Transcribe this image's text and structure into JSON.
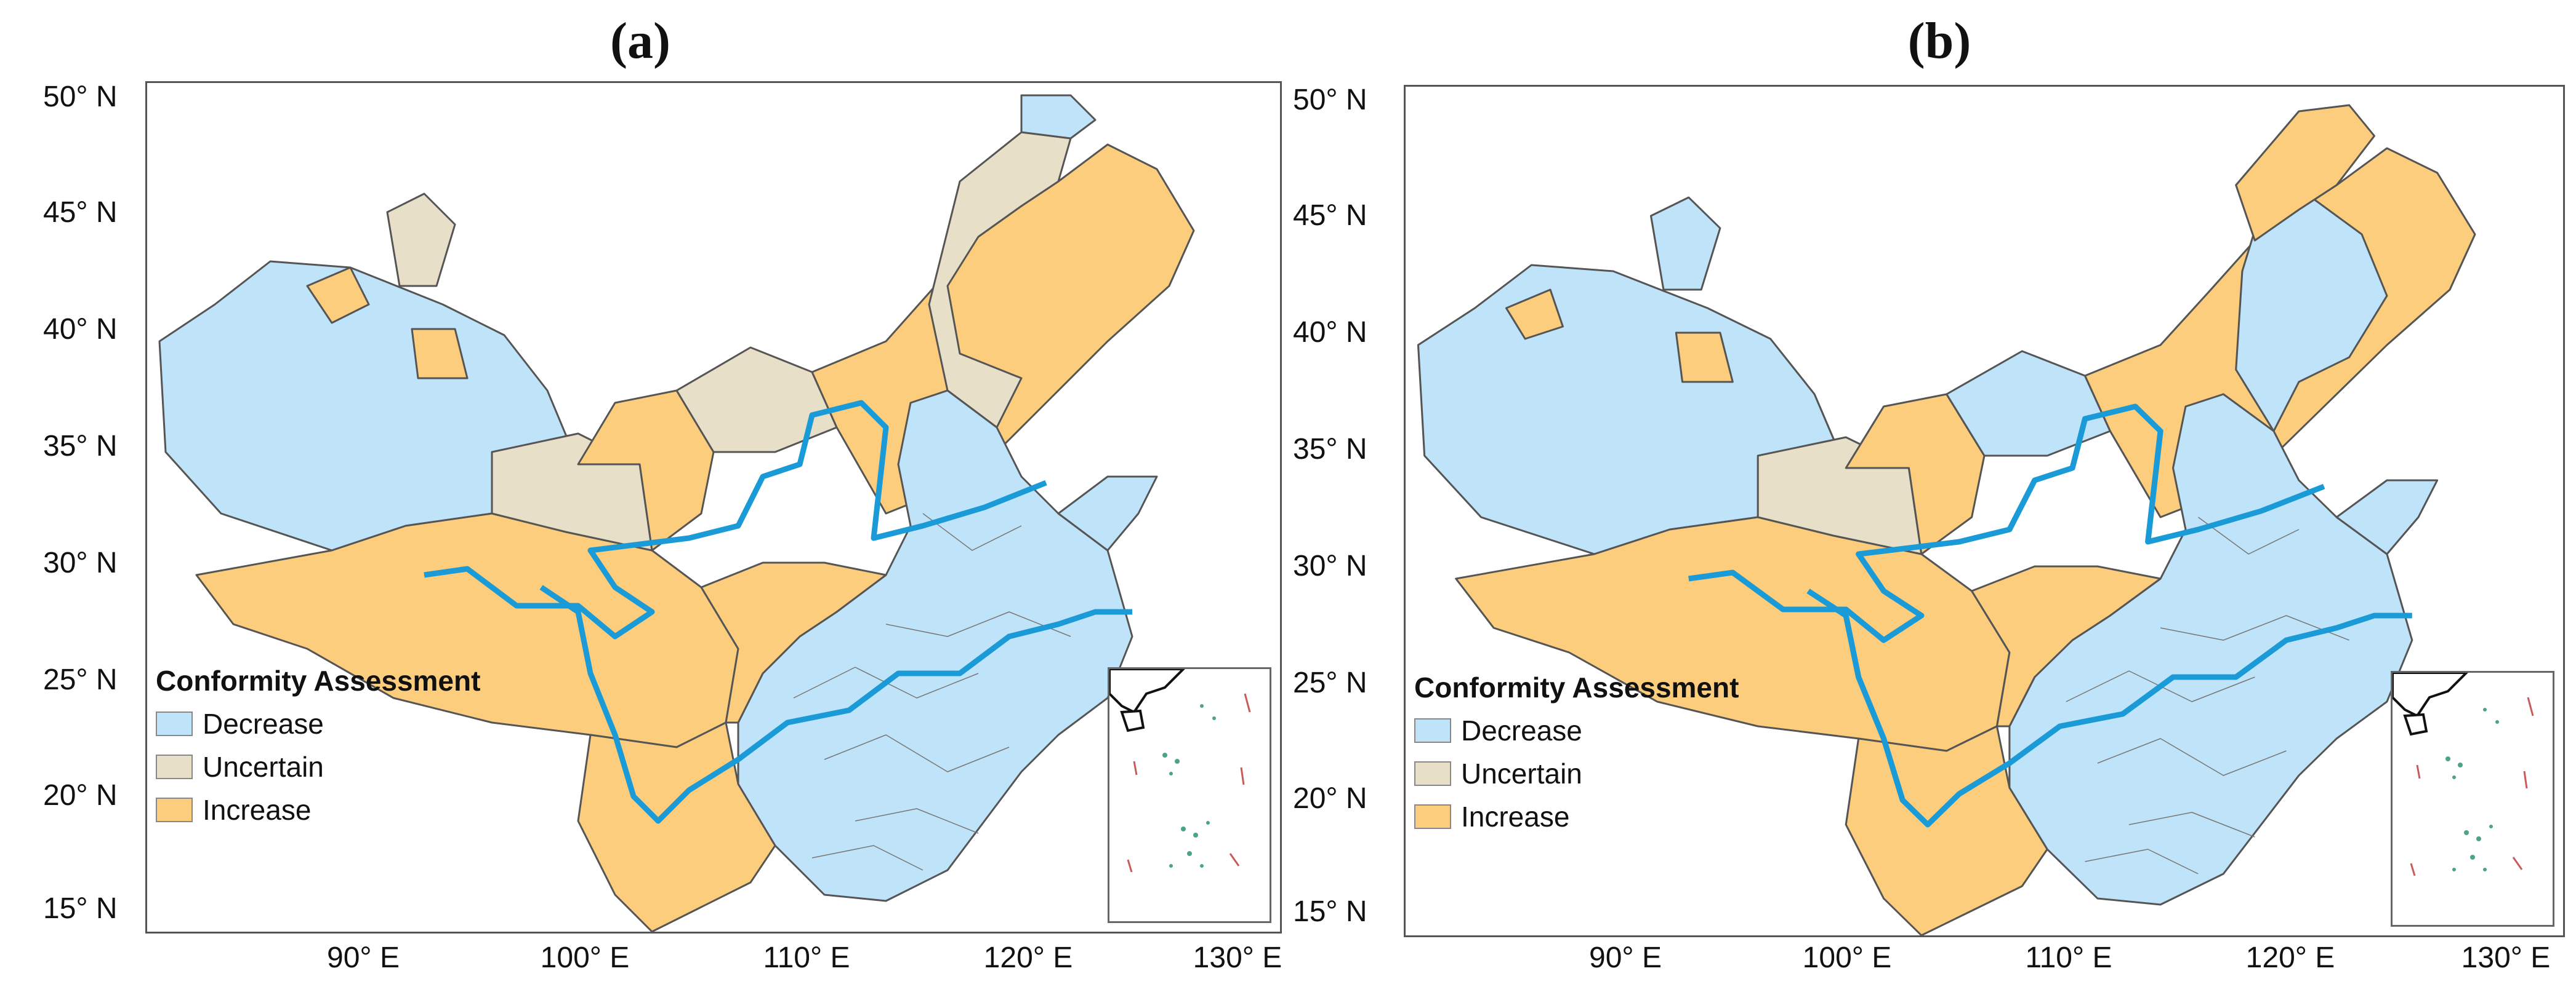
{
  "panels": [
    {
      "id": "a",
      "title": "(a)"
    },
    {
      "id": "b",
      "title": "(b)"
    }
  ],
  "axes": {
    "lat_labels": [
      "50° N",
      "45° N",
      "40° N",
      "35° N",
      "30° N",
      "25° N",
      "20° N",
      "15° N"
    ],
    "lon_labels": [
      "90° E",
      "100° E",
      "110° E",
      "120° E",
      "130° E"
    ]
  },
  "legend": {
    "title": "Conformity Assessment",
    "items": [
      {
        "label": "Decrease",
        "color": "#bfe3f8"
      },
      {
        "label": "Uncertain",
        "color": "#e8dfc8"
      },
      {
        "label": "Increase",
        "color": "#fbcd7d"
      }
    ]
  },
  "colors": {
    "border": "#555555",
    "river": "#1a9bd7",
    "islands_dots": "#4aa38a",
    "islands_dashes": "#c85a5a"
  }
}
